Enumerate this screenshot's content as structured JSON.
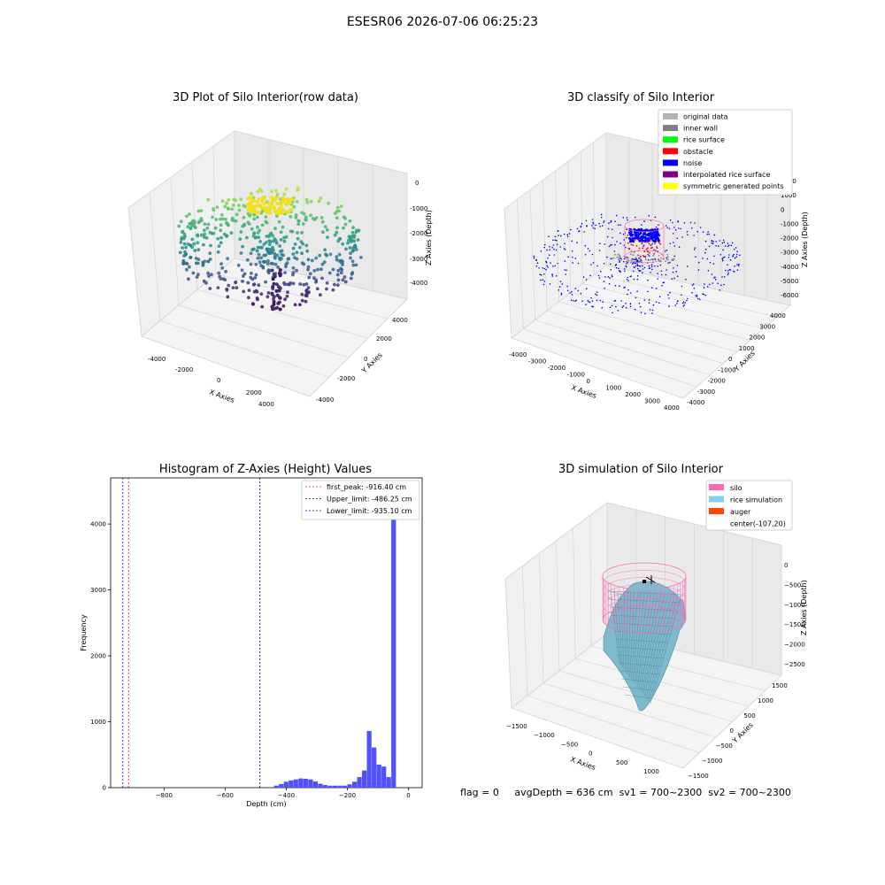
{
  "suptitle": "ESESR06 2026-07-06 06:25:23",
  "panels": {
    "raw": {
      "title": "3D Plot of Silo Interior(row data)",
      "xlabel": "X Axies",
      "ylabel": "Y Axies",
      "zlabel": "Z Axies (Depth)",
      "xticks": [
        "-4000",
        "-2000",
        "0",
        "2000",
        "4000"
      ],
      "yticks": [
        "-4000",
        "-2000",
        "0",
        "2000",
        "4000"
      ],
      "zticks": [
        "0",
        "-1000",
        "-2000",
        "-3000",
        "-4000"
      ],
      "colormap": "viridis"
    },
    "classify": {
      "title": "3D classify of Silo Interior",
      "xlabel": "X Axies",
      "ylabel": "Y Axies",
      "zlabel": "Z Axies (Depth)",
      "xticks": [
        "-4000",
        "-3000",
        "-2000",
        "-1000",
        "0",
        "1000",
        "2000",
        "3000",
        "4000"
      ],
      "yticks": [
        "-4000",
        "-3000",
        "-2000",
        "-1000",
        "0",
        "1000",
        "2000",
        "3000",
        "4000"
      ],
      "zticks": [
        "2000",
        "1000",
        "0",
        "-1000",
        "-2000",
        "-3000",
        "-4000",
        "-5000",
        "-6000"
      ],
      "legend": [
        {
          "label": "original data",
          "color": "#b3b3b3"
        },
        {
          "label": "inner wall",
          "color": "#808080"
        },
        {
          "label": "rice surface",
          "color": "#00ff00"
        },
        {
          "label": "obstacle",
          "color": "#ff0000"
        },
        {
          "label": "noise",
          "color": "#0000ff"
        },
        {
          "label": "interpolated rice surface",
          "color": "#800080"
        },
        {
          "label": "symmetric generated points",
          "color": "#ffff00"
        }
      ]
    },
    "simulation": {
      "title": "3D simulation of Silo Interior",
      "xlabel": "X Axies",
      "ylabel": "Y Axies",
      "zlabel": "Z Axies (Depth)",
      "xticks": [
        "-1500",
        "-1000",
        "-500",
        "0",
        "500",
        "1000"
      ],
      "yticks": [
        "-1500",
        "-1000",
        "-500",
        "0",
        "500",
        "1000",
        "1500"
      ],
      "zticks": [
        "0",
        "-500",
        "-1000",
        "-1500",
        "-2000",
        "-2500"
      ],
      "legend": [
        {
          "label": "silo",
          "color": "#ff69b4"
        },
        {
          "label": "rice simulation",
          "color": "#87ceeb"
        },
        {
          "label": "auger",
          "color": "#ff4500"
        },
        {
          "label": "center(-107,20)",
          "color": "none"
        }
      ]
    }
  },
  "chart_data": [
    {
      "type": "histogram",
      "title": "Histogram of Z-Axies (Height) Values",
      "xlabel": "Depth (cm)",
      "ylabel": "Frequency",
      "xlim": [
        -975,
        45
      ],
      "ylim": [
        0,
        4700
      ],
      "xticks": [
        -800,
        -600,
        -400,
        -200,
        0
      ],
      "yticks": [
        0,
        1000,
        2000,
        3000,
        4000
      ],
      "bar_color": "#5050ff",
      "bin_width": 16,
      "bins": [
        {
          "x": -440,
          "count": 30
        },
        {
          "x": -424,
          "count": 55
        },
        {
          "x": -408,
          "count": 90
        },
        {
          "x": -392,
          "count": 110
        },
        {
          "x": -376,
          "count": 125
        },
        {
          "x": -360,
          "count": 140
        },
        {
          "x": -344,
          "count": 135
        },
        {
          "x": -328,
          "count": 125
        },
        {
          "x": -312,
          "count": 95
        },
        {
          "x": -296,
          "count": 60
        },
        {
          "x": -280,
          "count": 40
        },
        {
          "x": -264,
          "count": 30
        },
        {
          "x": -248,
          "count": 30
        },
        {
          "x": -232,
          "count": 30
        },
        {
          "x": -216,
          "count": 30
        },
        {
          "x": -200,
          "count": 50
        },
        {
          "x": -184,
          "count": 90
        },
        {
          "x": -168,
          "count": 160
        },
        {
          "x": -152,
          "count": 260
        },
        {
          "x": -136,
          "count": 860
        },
        {
          "x": -120,
          "count": 610
        },
        {
          "x": -104,
          "count": 350
        },
        {
          "x": -88,
          "count": 320
        },
        {
          "x": -72,
          "count": 160
        },
        {
          "x": -56,
          "count": 4460
        }
      ],
      "lines": [
        {
          "label": "first_peak: -916.40 cm",
          "value": -916.4,
          "color": "#ff0000"
        },
        {
          "label": "Upper_limit: -486.25 cm",
          "value": -486.25,
          "color": "#0000aa"
        },
        {
          "label": "Lower_limit: -935.10 cm",
          "value": -935.1,
          "color": "#0000ff"
        }
      ]
    }
  ],
  "footer": {
    "flag": "flag = 0",
    "avg": "avgDepth = 636 cm",
    "sv1": "sv1 = 700~2300",
    "sv2": "sv2 = 700~2300"
  }
}
